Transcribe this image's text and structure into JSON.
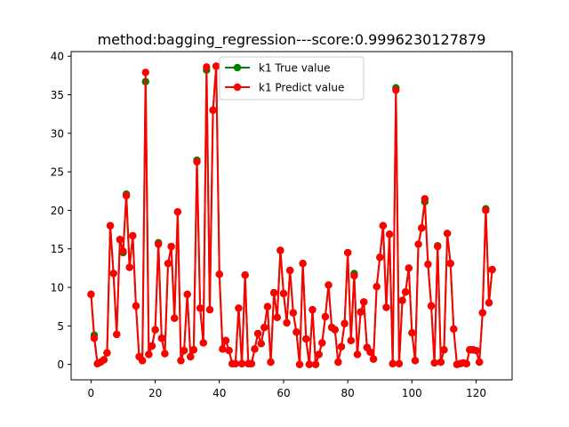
{
  "chart_data": {
    "type": "line",
    "title": "method:bagging_regression---score:0.9996230127879",
    "xlabel": "",
    "ylabel": "",
    "xlim": [
      -6.2,
      131.2
    ],
    "ylim": [
      -2.0,
      40.6
    ],
    "xticks": [
      0,
      20,
      40,
      60,
      80,
      100,
      120
    ],
    "yticks": [
      0,
      5,
      10,
      15,
      20,
      25,
      30,
      35,
      40
    ],
    "grid": false,
    "legend_position": "top-center",
    "x": [
      0,
      1,
      2,
      3,
      4,
      5,
      6,
      7,
      8,
      9,
      10,
      11,
      12,
      13,
      14,
      15,
      16,
      17,
      18,
      19,
      20,
      21,
      22,
      23,
      24,
      25,
      26,
      27,
      28,
      29,
      30,
      31,
      32,
      33,
      34,
      35,
      36,
      37,
      38,
      39,
      40,
      41,
      42,
      43,
      44,
      45,
      46,
      47,
      48,
      49,
      50,
      51,
      52,
      53,
      54,
      55,
      56,
      57,
      58,
      59,
      60,
      61,
      62,
      63,
      64,
      65,
      66,
      67,
      68,
      69,
      70,
      71,
      72,
      73,
      74,
      75,
      76,
      77,
      78,
      79,
      80,
      81,
      82,
      83,
      84,
      85,
      86,
      87,
      88,
      89,
      90,
      91,
      92,
      93,
      94,
      95,
      96,
      97,
      98,
      99,
      100,
      101,
      102,
      103,
      104,
      105,
      106,
      107,
      108,
      109,
      110,
      111,
      112,
      113,
      114,
      115,
      116,
      117,
      118,
      119,
      120,
      121,
      122,
      123,
      124,
      125
    ],
    "series": [
      {
        "name": "k1 True value",
        "color": "#008000",
        "values": [
          9.1,
          3.8,
          0.1,
          0.3,
          0.6,
          1.5,
          18.0,
          11.8,
          3.9,
          16.2,
          14.5,
          22.1,
          12.6,
          16.7,
          7.6,
          1.0,
          0.5,
          36.7,
          1.3,
          2.4,
          4.5,
          15.8,
          3.4,
          1.4,
          13.1,
          15.3,
          6.0,
          19.8,
          0.5,
          1.8,
          9.1,
          1.0,
          1.9,
          26.5,
          7.3,
          2.8,
          38.2,
          7.1,
          33.0,
          38.7,
          11.7,
          2.0,
          3.1,
          1.8,
          0.1,
          0.1,
          7.3,
          0.1,
          11.6,
          0.1,
          0.1,
          2.0,
          4.0,
          2.7,
          4.8,
          7.5,
          0.3,
          9.3,
          6.1,
          14.8,
          9.2,
          5.4,
          12.2,
          6.7,
          4.2,
          0.0,
          13.1,
          3.3,
          0.0,
          7.1,
          0.0,
          1.3,
          2.8,
          6.2,
          10.3,
          4.8,
          4.5,
          0.3,
          2.3,
          5.3,
          14.5,
          3.1,
          11.8,
          1.3,
          6.8,
          8.1,
          2.2,
          1.6,
          0.7,
          10.1,
          13.9,
          18.0,
          7.4,
          16.9,
          0.1,
          35.9,
          0.1,
          8.3,
          9.4,
          12.5,
          4.1,
          0.5,
          15.6,
          17.7,
          21.1,
          13.0,
          7.6,
          0.2,
          15.4,
          0.3,
          1.9,
          17.0,
          13.1,
          4.6,
          0.0,
          0.1,
          0.2,
          0.1,
          1.9,
          1.9,
          1.8,
          0.3,
          6.7,
          20.2,
          8.0,
          12.3
        ]
      },
      {
        "name": "k1 Predict value",
        "color": "#ff0000",
        "values": [
          9.1,
          3.4,
          0.1,
          0.3,
          0.6,
          1.5,
          18.0,
          11.8,
          3.9,
          16.2,
          14.7,
          21.9,
          12.6,
          16.7,
          7.6,
          1.0,
          0.5,
          37.9,
          1.3,
          2.4,
          4.5,
          15.6,
          3.4,
          1.4,
          13.1,
          15.3,
          6.0,
          19.8,
          0.5,
          1.8,
          9.1,
          1.0,
          1.9,
          26.3,
          7.3,
          2.8,
          38.6,
          7.1,
          33.0,
          38.7,
          11.7,
          2.0,
          3.1,
          1.8,
          0.1,
          0.1,
          7.3,
          0.1,
          11.6,
          0.1,
          0.1,
          2.0,
          4.0,
          2.7,
          4.8,
          7.5,
          0.3,
          9.3,
          6.1,
          14.8,
          9.2,
          5.4,
          12.2,
          6.7,
          4.2,
          0.0,
          13.1,
          3.3,
          0.0,
          7.1,
          0.0,
          1.3,
          2.8,
          6.2,
          10.3,
          4.8,
          4.5,
          0.3,
          2.3,
          5.3,
          14.5,
          3.1,
          11.5,
          1.3,
          6.8,
          8.1,
          2.2,
          1.6,
          0.7,
          10.1,
          13.9,
          18.0,
          7.4,
          16.9,
          0.1,
          35.6,
          0.1,
          8.3,
          9.4,
          12.5,
          4.1,
          0.5,
          15.6,
          17.7,
          21.5,
          13.0,
          7.6,
          0.2,
          15.3,
          0.3,
          1.9,
          17.0,
          13.1,
          4.6,
          0.0,
          0.1,
          0.2,
          0.1,
          1.9,
          1.9,
          1.8,
          0.3,
          6.7,
          20.0,
          8.0,
          12.3
        ]
      }
    ]
  }
}
